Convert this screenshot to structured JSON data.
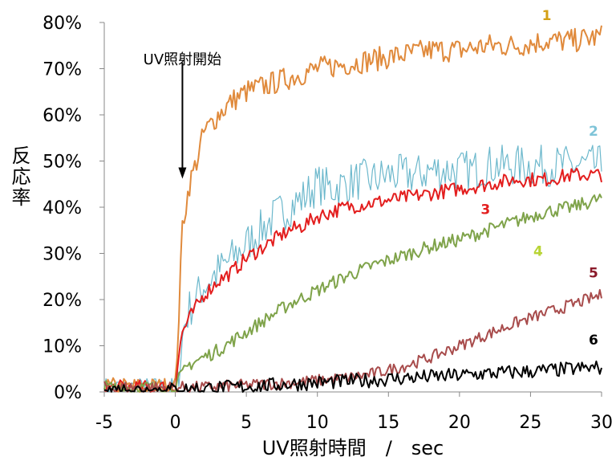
{
  "chart_data": {
    "type": "line",
    "title": "",
    "xlabel": "UV照射時間　/　sec",
    "ylabel": "反応率",
    "xlim": [
      -5,
      30
    ],
    "ylim": [
      0,
      80
    ],
    "xticks": [
      "-5",
      "0",
      "5",
      "10",
      "15",
      "20",
      "25",
      "30"
    ],
    "xtick_values": [
      -5,
      0,
      5,
      10,
      15,
      20,
      25,
      30
    ],
    "yticks": [
      "0%",
      "10%",
      "20%",
      "30%",
      "40%",
      "50%",
      "60%",
      "70%",
      "80%"
    ],
    "ytick_values": [
      0,
      10,
      20,
      30,
      40,
      50,
      60,
      70,
      80
    ],
    "grid": false,
    "annotation": {
      "text": "UV照射開始",
      "x": 0.5,
      "y_from": 72,
      "y_to": 46
    },
    "series": [
      {
        "name": "2",
        "color": "#6CB8CC",
        "stroke_width": 1.2,
        "label_pos": [
          29.1,
          55.5
        ],
        "x": [
          -5,
          0,
          0.3,
          0.6,
          1,
          2,
          3,
          4,
          5,
          6,
          7,
          8,
          9,
          10,
          11,
          12,
          13,
          14,
          15,
          16,
          17,
          18,
          19,
          20,
          21,
          22,
          23,
          24,
          25,
          26,
          27,
          28,
          29,
          30
        ],
        "y": [
          1,
          1,
          6,
          14,
          18,
          23,
          26,
          29,
          32,
          35,
          38,
          40,
          42,
          45,
          44,
          45,
          46,
          46,
          47,
          47,
          47,
          48,
          48,
          48,
          48,
          49,
          49,
          49,
          49,
          49,
          49,
          49,
          49,
          49
        ],
        "noise": 4.5
      },
      {
        "name": "1",
        "color": "#E08A3C",
        "stroke_width": 2,
        "label_pos": [
          25.8,
          80.5
        ],
        "x": [
          -5,
          0,
          0.3,
          0.5,
          1,
          1.5,
          2,
          3,
          4,
          5,
          6,
          8,
          10,
          12,
          14,
          16,
          18,
          20,
          22,
          24,
          26,
          28,
          30
        ],
        "y": [
          1,
          1,
          20,
          36,
          45,
          50,
          56,
          60,
          63,
          65,
          66,
          68,
          70,
          71,
          72,
          73,
          74,
          74,
          75,
          75,
          76,
          76,
          77
        ],
        "noise": 2.6
      },
      {
        "name": "3",
        "color": "#E31E1E",
        "stroke_width": 2,
        "label_pos": [
          21.5,
          38.5
        ],
        "x": [
          -5,
          0,
          0.2,
          0.5,
          1,
          2,
          3,
          4,
          5,
          6,
          7,
          8,
          9,
          10,
          12,
          14,
          16,
          18,
          20,
          22,
          24,
          26,
          28,
          30
        ],
        "y": [
          1,
          1,
          7,
          13,
          16,
          21,
          24,
          26,
          29,
          31,
          33,
          35,
          36,
          38,
          40,
          41,
          42,
          43,
          44,
          45,
          46,
          46,
          47,
          47
        ],
        "noise": 1.6
      },
      {
        "name": "4",
        "color": "#7FA34A",
        "stroke_width": 2,
        "label_pos": [
          25.2,
          29.5
        ],
        "x": [
          -5,
          0,
          0.3,
          1,
          2,
          3,
          4,
          5,
          6,
          7,
          8,
          9,
          10,
          12,
          14,
          16,
          18,
          20,
          22,
          24,
          26,
          28,
          30
        ],
        "y": [
          1,
          1,
          3,
          6,
          7.5,
          9,
          11,
          13,
          15,
          17,
          19,
          20.5,
          22,
          25,
          27.5,
          29.5,
          31.5,
          33,
          35,
          37,
          39,
          40,
          42
        ],
        "noise": 1.5
      },
      {
        "name": "5",
        "color": "#A84C4C",
        "stroke_width": 2,
        "label_pos": [
          29.1,
          24.8
        ],
        "x": [
          -5,
          0,
          2,
          5,
          8,
          10,
          12,
          14,
          16,
          18,
          20,
          22,
          24,
          26,
          28,
          30
        ],
        "y": [
          1,
          1,
          1,
          1.5,
          2,
          2.5,
          3,
          4,
          5.5,
          7.5,
          10,
          12.5,
          15,
          17,
          19,
          21
        ],
        "noise": 1.3
      },
      {
        "name": "6",
        "color": "#000000",
        "stroke_width": 2,
        "label_pos": [
          29.1,
          10.3
        ],
        "x": [
          -5,
          0,
          2,
          4,
          6,
          8,
          10,
          12,
          14,
          16,
          18,
          20,
          22,
          24,
          26,
          28,
          30
        ],
        "y": [
          0.5,
          0.5,
          0.8,
          1,
          1.3,
          1.7,
          2,
          2.3,
          2.6,
          3,
          3.3,
          3.6,
          4,
          4.3,
          4.6,
          5,
          5.3
        ],
        "noise": 1.6
      }
    ],
    "series_label_colors": {
      "1": "#D4A017",
      "2": "#7FC4D8",
      "3": "#E31E1E",
      "4": "#B8D435",
      "5": "#8B1A2A",
      "6": "#000000"
    }
  }
}
